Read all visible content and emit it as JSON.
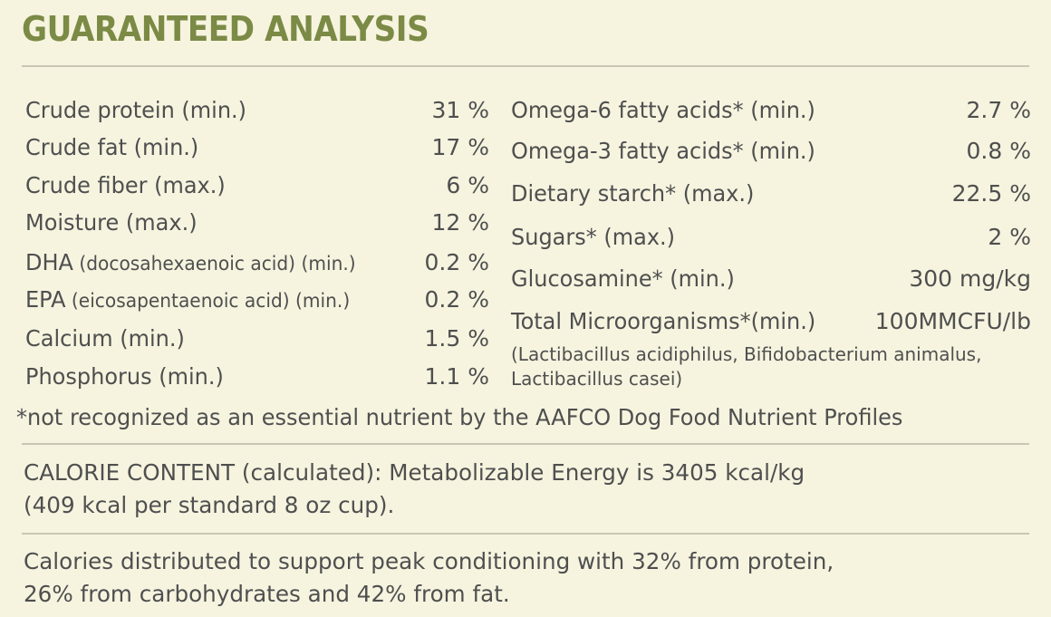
{
  "title": "GUARANTEED ANALYSIS",
  "left_items": [
    {
      "label": "Crude protein (min.)",
      "note": "",
      "suffix": "",
      "value": "31 %"
    },
    {
      "label": "Crude fat (min.)",
      "note": "",
      "suffix": "",
      "value": "17 %"
    },
    {
      "label": "Crude fiber (max.)",
      "note": "",
      "suffix": "",
      "value": "6 %"
    },
    {
      "label": "Moisture (max.)",
      "note": "",
      "suffix": "",
      "value": "12 %"
    },
    {
      "label": "DHA",
      "note": " (docosahexaenoic acid)",
      "suffix": " (min.)",
      "value": "0.2 %"
    },
    {
      "label": "EPA",
      "note": " (eicosapentaenoic acid)",
      "suffix": " (min.)",
      "value": "0.2 %"
    },
    {
      "label": "Calcium (min.)",
      "note": "",
      "suffix": "",
      "value": "1.5 %"
    },
    {
      "label": "Phosphorus (min.)",
      "note": "",
      "suffix": "",
      "value": "1.1 %"
    }
  ],
  "right_items": [
    {
      "label": "Omega-6 fatty acids* (min.)",
      "value": "2.7 %"
    },
    {
      "label": "Omega-3 fatty acids* (min.)",
      "value": "0.8 %"
    },
    {
      "label": "Dietary starch* (max.)",
      "value": "22.5 %"
    },
    {
      "label": "Sugars* (max.)",
      "value": "2 %"
    },
    {
      "label": "Glucosamine* (min.)",
      "value": "300 mg/kg"
    },
    {
      "label": "Total Microorganisms*(min.)",
      "value": "100MMCFU/lb"
    }
  ],
  "microorganisms_note": {
    "line1": "(Lactibacillus acidiphilus, Bifidobacterium animalus,",
    "line2": "Lactibacillus casei)"
  },
  "footnote": "*not recognized as an essential nutrient by the AAFCO Dog Food Nutrient Profiles",
  "calorie_content": {
    "line1": "CALORIE CONTENT (calculated): Metabolizable Energy is 3405 kcal/kg",
    "line2": "(409 kcal per standard 8 oz cup)."
  },
  "calorie_distribution": {
    "line1": "Calories distributed to support peak conditioning with 32% from protein,",
    "line2": "26% from carbohydrates and 42% from fat."
  },
  "colors": {
    "background": "#f6f4df",
    "title": "#7b8a45",
    "text": "#4f4f4f",
    "rule": "#c9c7b3"
  }
}
